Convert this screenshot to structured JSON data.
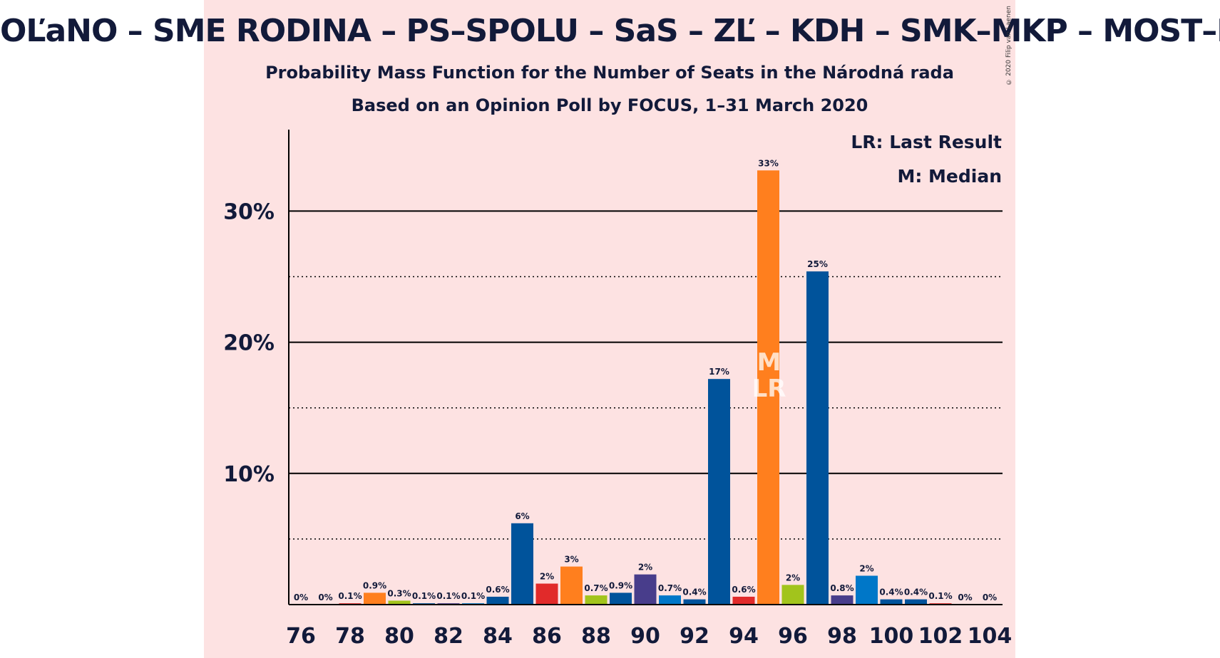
{
  "title": "OĽaNO – SME RODINA – PS–SPOLU – SaS – ZĽ – KDH – SMK–MKP – MOST–HÍD",
  "subtitle": "Probability Mass Function for the Number of Seats in the Národná rada",
  "source": "Based on an Opinion Poll by FOCUS, 1–31 March 2020",
  "copyright": "© 2020 Filip van Laenen",
  "legend": {
    "last_result": "LR: Last Result",
    "median": "M: Median"
  },
  "markers": {
    "median_seat": 95,
    "median_label": "M",
    "last_result_seat": 95,
    "last_result_label": "LR"
  },
  "colors": {
    "background": "#fde2e2",
    "text": "#121a3a"
  },
  "chart_data": {
    "type": "bar",
    "xlabel": "",
    "ylabel": "",
    "ylim": [
      0,
      36
    ],
    "y_major_ticks": [
      10,
      20,
      30
    ],
    "y_major_tick_labels": [
      "10%",
      "20%",
      "30%"
    ],
    "y_minor_gridlines": [
      5,
      15,
      25
    ],
    "x_tick_labels": [
      "76",
      "78",
      "80",
      "82",
      "84",
      "86",
      "88",
      "90",
      "92",
      "94",
      "96",
      "98",
      "100",
      "102",
      "104"
    ],
    "bars": [
      {
        "seats": 76,
        "value": 0,
        "label": "0%",
        "color": "#00539b"
      },
      {
        "seats": 77,
        "value": 0,
        "label": "0%",
        "color": "#e12a2a"
      },
      {
        "seats": 78,
        "value": 0.1,
        "label": "0.1%",
        "color": "#e12a2a"
      },
      {
        "seats": 79,
        "value": 0.9,
        "label": "0.9%",
        "color": "#ff7f1e"
      },
      {
        "seats": 80,
        "value": 0.3,
        "label": "0.3%",
        "color": "#a2c41c"
      },
      {
        "seats": 81,
        "value": 0.1,
        "label": "0.1%",
        "color": "#00539b"
      },
      {
        "seats": 82,
        "value": 0.1,
        "label": "0.1%",
        "color": "#483d8b"
      },
      {
        "seats": 83,
        "value": 0.1,
        "label": "0.1%",
        "color": "#0077c8"
      },
      {
        "seats": 84,
        "value": 0.6,
        "label": "0.6%",
        "color": "#00539b"
      },
      {
        "seats": 85,
        "value": 6.2,
        "label": "6%",
        "color": "#00539b"
      },
      {
        "seats": 86,
        "value": 1.6,
        "label": "2%",
        "color": "#e12a2a"
      },
      {
        "seats": 87,
        "value": 2.9,
        "label": "3%",
        "color": "#ff7f1e"
      },
      {
        "seats": 88,
        "value": 0.7,
        "label": "0.7%",
        "color": "#a2c41c"
      },
      {
        "seats": 89,
        "value": 0.9,
        "label": "0.9%",
        "color": "#00539b"
      },
      {
        "seats": 90,
        "value": 2.3,
        "label": "2%",
        "color": "#483d8b"
      },
      {
        "seats": 91,
        "value": 0.7,
        "label": "0.7%",
        "color": "#0077c8"
      },
      {
        "seats": 92,
        "value": 0.4,
        "label": "0.4%",
        "color": "#00539b"
      },
      {
        "seats": 93,
        "value": 17.2,
        "label": "17%",
        "color": "#00539b"
      },
      {
        "seats": 94,
        "value": 0.6,
        "label": "0.6%",
        "color": "#e12a2a"
      },
      {
        "seats": 95,
        "value": 33.1,
        "label": "33%",
        "color": "#ff7f1e"
      },
      {
        "seats": 96,
        "value": 1.5,
        "label": "2%",
        "color": "#a2c41c"
      },
      {
        "seats": 97,
        "value": 25.4,
        "label": "25%",
        "color": "#00539b"
      },
      {
        "seats": 98,
        "value": 0.7,
        "label": "0.8%",
        "color": "#483d8b"
      },
      {
        "seats": 99,
        "value": 2.2,
        "label": "2%",
        "color": "#0077c8"
      },
      {
        "seats": 100,
        "value": 0.4,
        "label": "0.4%",
        "color": "#00539b"
      },
      {
        "seats": 101,
        "value": 0.4,
        "label": "0.4%",
        "color": "#00539b"
      },
      {
        "seats": 102,
        "value": 0.1,
        "label": "0.1%",
        "color": "#e12a2a"
      },
      {
        "seats": 103,
        "value": 0,
        "label": "0%",
        "color": "#ff7f1e"
      },
      {
        "seats": 104,
        "value": 0,
        "label": "0%",
        "color": "#a2c41c"
      }
    ]
  }
}
